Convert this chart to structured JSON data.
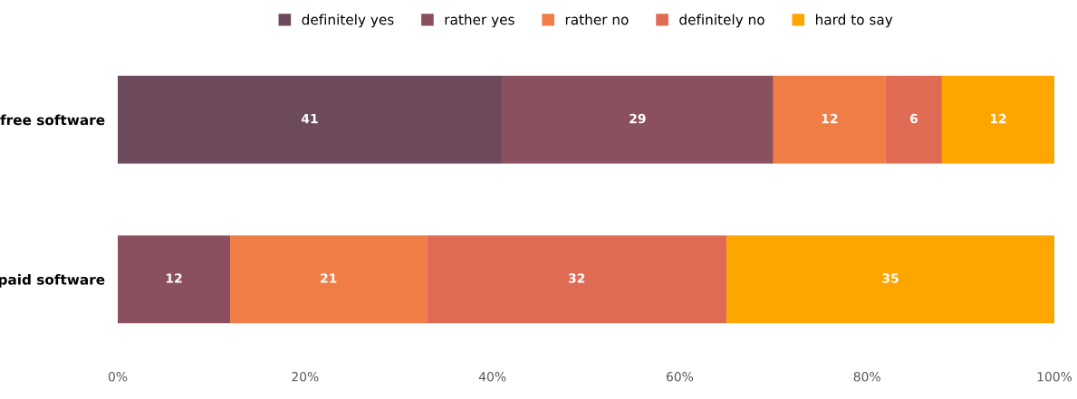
{
  "chart_data": {
    "type": "bar",
    "orientation": "horizontal",
    "stacked": true,
    "data_labels": true,
    "legend": "top",
    "grid": false,
    "categories": [
      "free software",
      "paid software"
    ],
    "series": [
      {
        "name": "definitely yes",
        "color": "#6c4a5c",
        "values": [
          41,
          null
        ]
      },
      {
        "name": "rather yes",
        "color": "#8b505f",
        "values": [
          29,
          12
        ]
      },
      {
        "name": "rather no",
        "color": "#f07d45",
        "values": [
          12,
          21
        ]
      },
      {
        "name": "definitely no",
        "color": "#e06b55",
        "values": [
          6,
          32
        ]
      },
      {
        "name": "hard to say",
        "color": "#ffa500",
        "values": [
          12,
          35
        ]
      }
    ],
    "xlim": [
      0,
      100
    ],
    "xticks": [
      {
        "value": 0,
        "label": "0%"
      },
      {
        "value": 20,
        "label": "20%"
      },
      {
        "value": 40,
        "label": "40%"
      },
      {
        "value": 60,
        "label": "60%"
      },
      {
        "value": 80,
        "label": "80%"
      },
      {
        "value": 100,
        "label": "100%"
      }
    ]
  }
}
